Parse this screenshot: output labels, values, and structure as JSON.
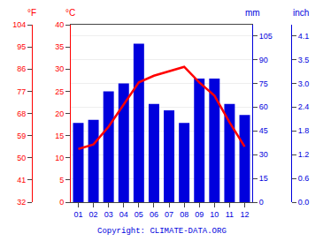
{
  "chart_data": {
    "type": "bar",
    "categories": [
      "01",
      "02",
      "03",
      "04",
      "05",
      "06",
      "07",
      "08",
      "09",
      "10",
      "11",
      "12"
    ],
    "series": [
      {
        "type": "bar",
        "color": "#0000dd",
        "axis": "y",
        "values": [
          50,
          52,
          70,
          75,
          100,
          62,
          58,
          50,
          78,
          78,
          62,
          55
        ]
      },
      {
        "type": "line",
        "color": "#ff0000",
        "axis": "y2",
        "values": [
          12,
          13,
          17,
          22,
          27,
          28.5,
          29.5,
          30.5,
          27,
          24,
          18,
          12.5
        ]
      }
    ],
    "ylabel": "mm",
    "ylim": [
      0,
      112
    ],
    "yticks": [
      0,
      15,
      30,
      45,
      60,
      75,
      90,
      105
    ],
    "y2label": "°C",
    "y2lim": [
      0,
      40
    ],
    "y2ticks": [
      0,
      5,
      10,
      15,
      20,
      25,
      30,
      35,
      40
    ],
    "y3label": "°F",
    "y3lim": [
      0,
      40
    ],
    "y3ticks": [
      {
        "value": 0,
        "label": "32"
      },
      {
        "value": 5,
        "label": "41"
      },
      {
        "value": 10,
        "label": "50"
      },
      {
        "value": 15,
        "label": "59"
      },
      {
        "value": 20,
        "label": "68"
      },
      {
        "value": 25,
        "label": "77"
      },
      {
        "value": 30,
        "label": "86"
      },
      {
        "value": 35,
        "label": "95"
      },
      {
        "value": 40,
        "label": "104"
      }
    ],
    "y4label": "inch",
    "y4lim": [
      0,
      112
    ],
    "y4ticks": [
      {
        "value": 0,
        "label": "0.0"
      },
      {
        "value": 15,
        "label": "0.6"
      },
      {
        "value": 30,
        "label": "1.2"
      },
      {
        "value": 45,
        "label": "1.8"
      },
      {
        "value": 60,
        "label": "2.4"
      },
      {
        "value": 75,
        "label": "3.0"
      },
      {
        "value": 90,
        "label": "3.5"
      },
      {
        "value": 105,
        "label": "4.1"
      }
    ],
    "annotations": [
      {
        "text": "Copyright: CLIMATE-DATA.ORG"
      }
    ],
    "grid": true
  }
}
